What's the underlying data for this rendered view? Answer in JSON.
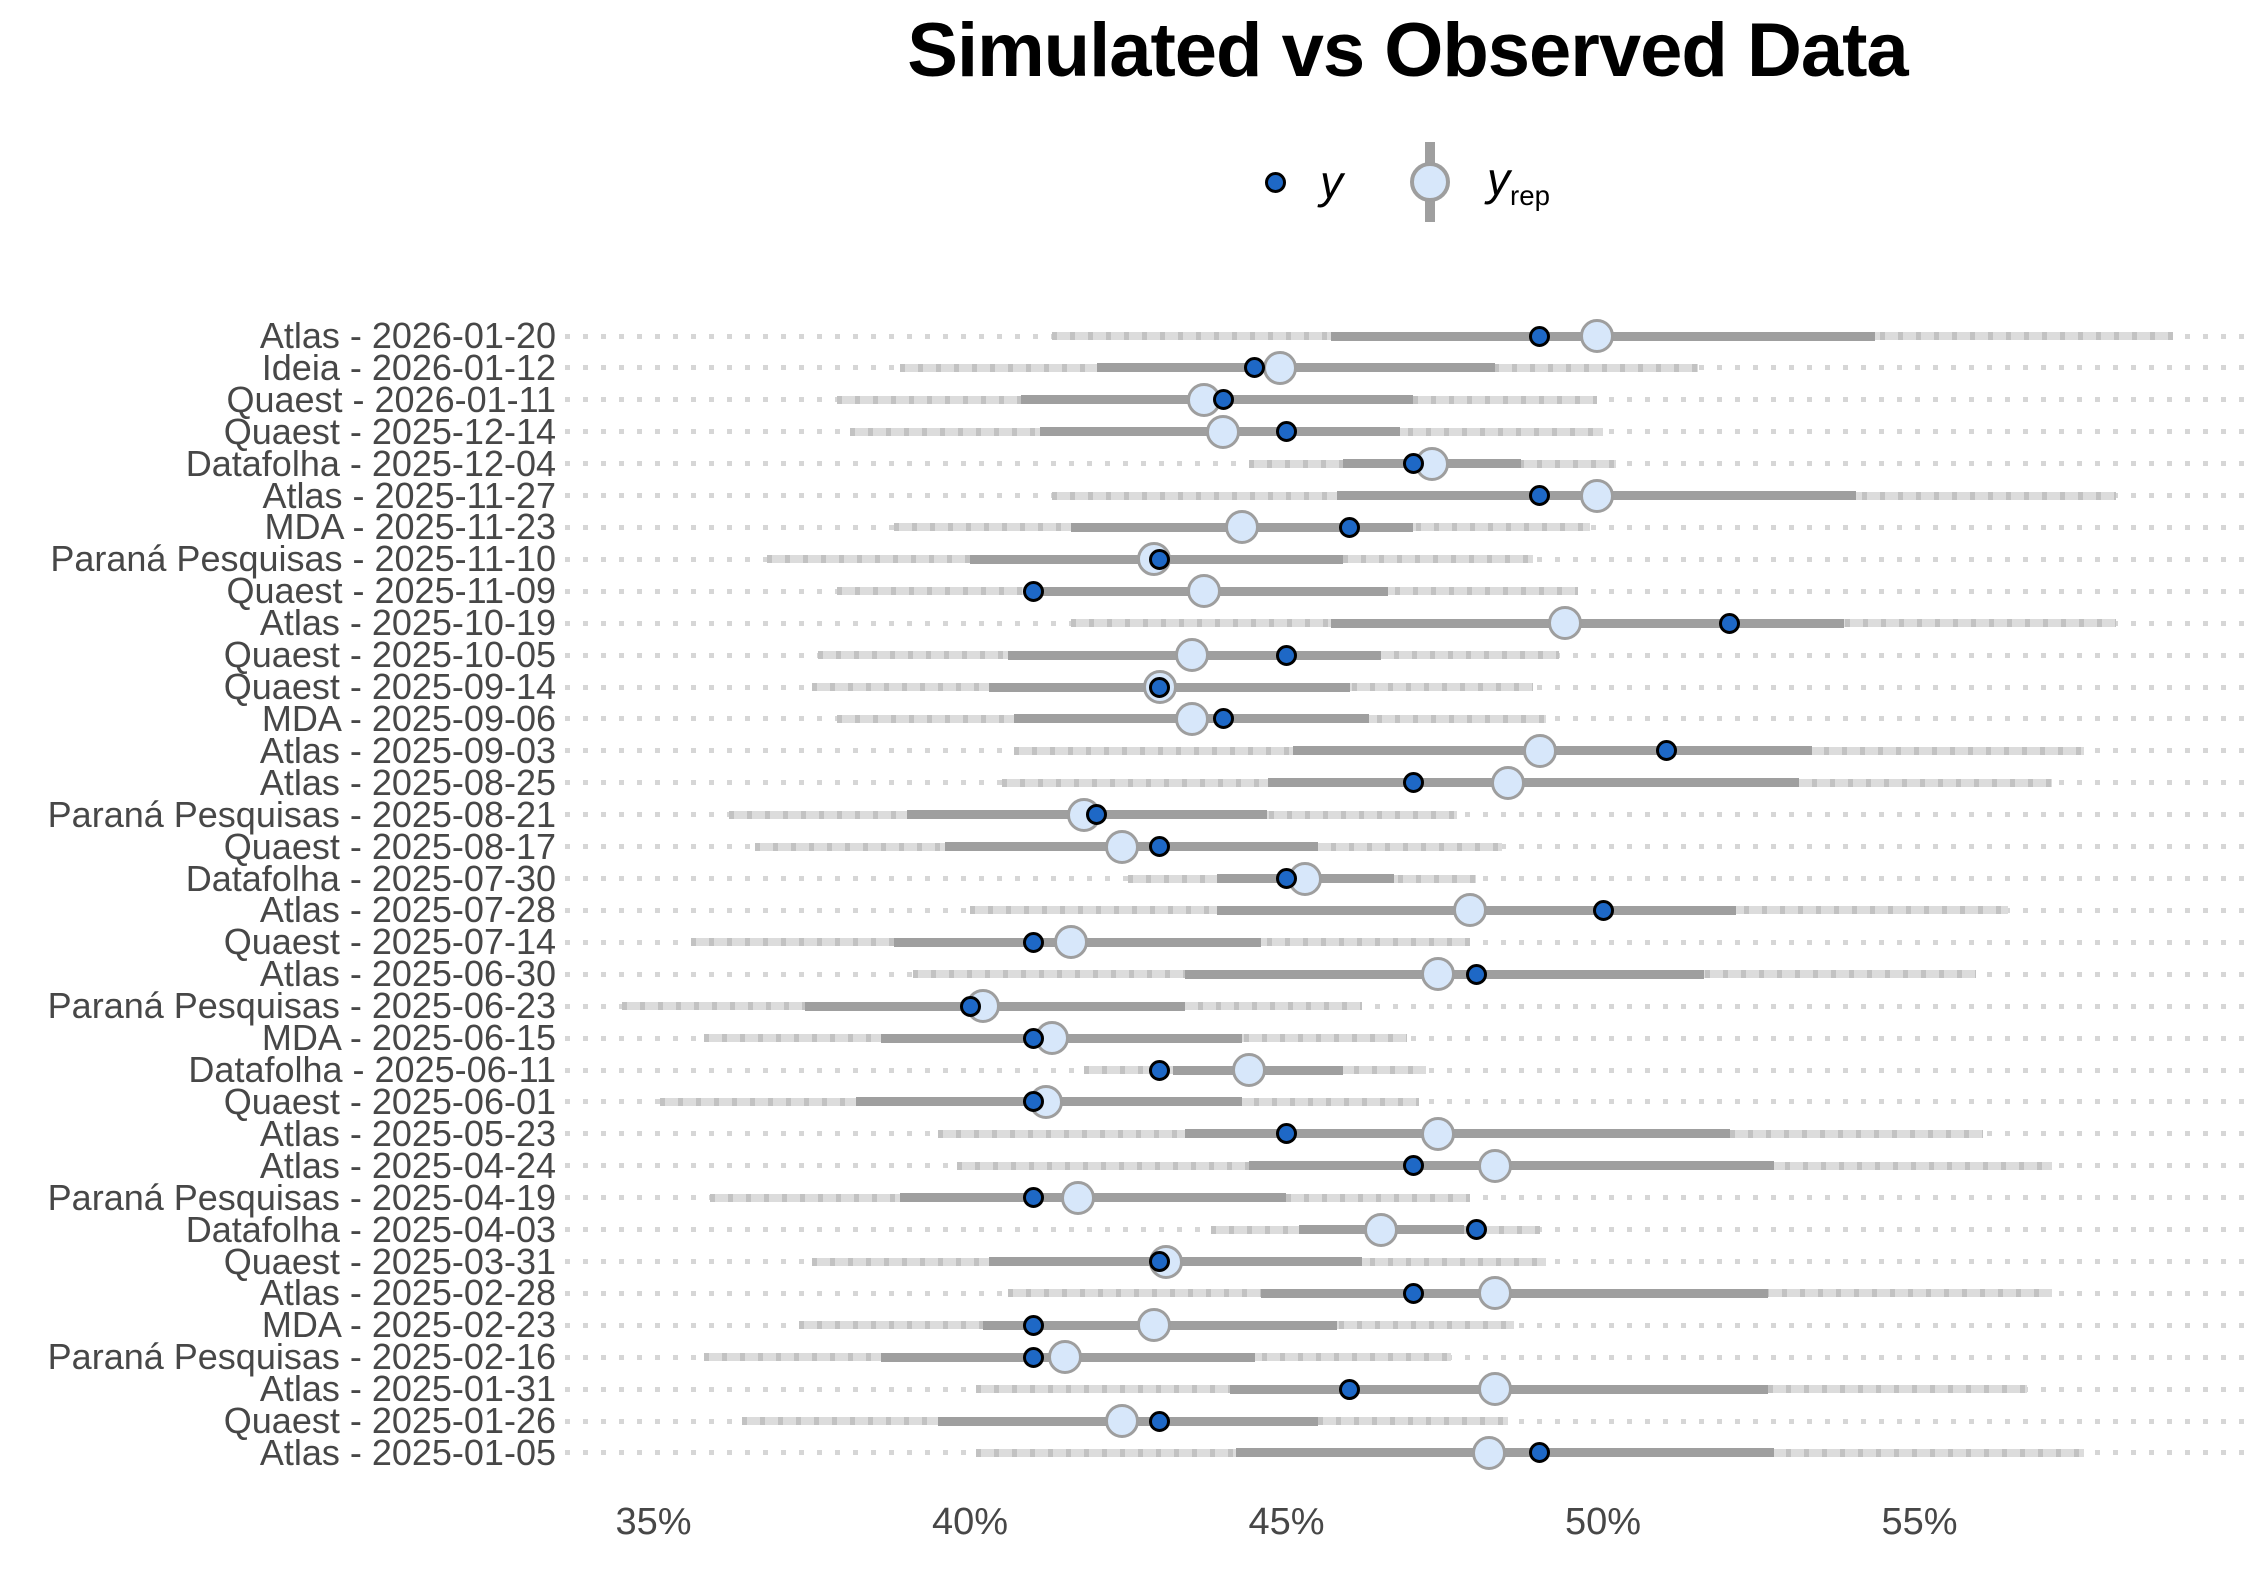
{
  "title": "Simulated vs Observed Data",
  "legend": {
    "y_label": "y",
    "yrep_label": "y",
    "yrep_label_sub": "rep"
  },
  "colors": {
    "y_point_fill": "#1e68c6",
    "y_point_stroke": "#000000",
    "yrep_fill": "#d7e7fa",
    "yrep_stroke": "#9e9e9e",
    "inner_interval": "#9f9f9f",
    "outer_interval": "#dcdcdc",
    "outer_interval_dash": "#c2c2c2",
    "grid_dot": "#d6d6d6",
    "axis_text": "#474747",
    "title_text": "#000000"
  },
  "x_axis": {
    "tick_labels": [
      "35%",
      "40%",
      "45%",
      "50%",
      "55%"
    ],
    "tick_values": [
      35,
      40,
      45,
      50,
      55
    ]
  },
  "chart_data": {
    "type": "scatter",
    "subtype": "ppc_intervals",
    "title": "Simulated vs Observed Data",
    "xlabel": "",
    "ylabel": "",
    "xlim": [
      33.8,
      60.3
    ],
    "x_tick_labels": [
      "35%",
      "40%",
      "45%",
      "50%",
      "55%"
    ],
    "x_tick_values": [
      35,
      40,
      45,
      50,
      55
    ],
    "legend_entries": [
      "y",
      "y_rep"
    ],
    "grid": "dotted-horizontal",
    "legend_position": "top-center",
    "rows": [
      {
        "label": "Atlas - 2026-01-20",
        "outer": [
          41.3,
          59.0
        ],
        "inner": [
          45.7,
          54.3
        ],
        "y_rep": 49.9,
        "y": 49
      },
      {
        "label": "Ideia - 2026-01-12",
        "outer": [
          38.9,
          51.5
        ],
        "inner": [
          42.0,
          48.3
        ],
        "y_rep": 44.9,
        "y": 44.5
      },
      {
        "label": "Quaest - 2026-01-11",
        "outer": [
          37.9,
          49.9
        ],
        "inner": [
          40.8,
          47.0
        ],
        "y_rep": 43.7,
        "y": 44
      },
      {
        "label": "Quaest - 2025-12-14",
        "outer": [
          38.1,
          50.0
        ],
        "inner": [
          41.1,
          46.8
        ],
        "y_rep": 44.0,
        "y": 45
      },
      {
        "label": "Datafolha - 2025-12-04",
        "outer": [
          44.4,
          50.2
        ],
        "inner": [
          45.9,
          48.7
        ],
        "y_rep": 47.3,
        "y": 47
      },
      {
        "label": "Atlas - 2025-11-27",
        "outer": [
          41.3,
          58.1
        ],
        "inner": [
          45.8,
          54.0
        ],
        "y_rep": 49.9,
        "y": 49
      },
      {
        "label": "MDA - 2025-11-23",
        "outer": [
          38.8,
          49.8
        ],
        "inner": [
          41.6,
          47.0
        ],
        "y_rep": 44.3,
        "y": 46
      },
      {
        "label": "Paraná Pesquisas - 2025-11-10",
        "outer": [
          36.8,
          48.9
        ],
        "inner": [
          40.0,
          45.9
        ],
        "y_rep": 42.9,
        "y": 43
      },
      {
        "label": "Quaest - 2025-11-09",
        "outer": [
          37.9,
          49.6
        ],
        "inner": [
          41.0,
          46.6
        ],
        "y_rep": 43.7,
        "y": 41
      },
      {
        "label": "Atlas - 2025-10-19",
        "outer": [
          41.6,
          58.1
        ],
        "inner": [
          45.7,
          53.8
        ],
        "y_rep": 49.4,
        "y": 52
      },
      {
        "label": "Quaest - 2025-10-05",
        "outer": [
          37.6,
          49.3
        ],
        "inner": [
          40.6,
          46.5
        ],
        "y_rep": 43.5,
        "y": 45
      },
      {
        "label": "Quaest - 2025-09-14",
        "outer": [
          37.5,
          48.9
        ],
        "inner": [
          40.3,
          46.0
        ],
        "y_rep": 43.0,
        "y": 43
      },
      {
        "label": "MDA - 2025-09-06",
        "outer": [
          37.9,
          49.1
        ],
        "inner": [
          40.7,
          46.3
        ],
        "y_rep": 43.5,
        "y": 44
      },
      {
        "label": "Atlas - 2025-09-03",
        "outer": [
          40.7,
          57.6
        ],
        "inner": [
          45.1,
          53.3
        ],
        "y_rep": 49.0,
        "y": 51
      },
      {
        "label": "Atlas - 2025-08-25",
        "outer": [
          40.5,
          57.1
        ],
        "inner": [
          44.7,
          53.1
        ],
        "y_rep": 48.5,
        "y": 47
      },
      {
        "label": "Paraná Pesquisas - 2025-08-21",
        "outer": [
          36.2,
          47.7
        ],
        "inner": [
          39.0,
          44.7
        ],
        "y_rep": 41.8,
        "y": 42
      },
      {
        "label": "Quaest - 2025-08-17",
        "outer": [
          36.6,
          48.4
        ],
        "inner": [
          39.6,
          45.5
        ],
        "y_rep": 42.4,
        "y": 43
      },
      {
        "label": "Datafolha - 2025-07-30",
        "outer": [
          42.5,
          48.0
        ],
        "inner": [
          43.9,
          46.7
        ],
        "y_rep": 45.3,
        "y": 45
      },
      {
        "label": "Atlas - 2025-07-28",
        "outer": [
          40.0,
          56.4
        ],
        "inner": [
          43.9,
          52.1
        ],
        "y_rep": 47.9,
        "y": 50
      },
      {
        "label": "Quaest - 2025-07-14",
        "outer": [
          35.6,
          47.9
        ],
        "inner": [
          38.8,
          44.6
        ],
        "y_rep": 41.6,
        "y": 41
      },
      {
        "label": "Atlas - 2025-06-30",
        "outer": [
          39.1,
          55.9
        ],
        "inner": [
          43.4,
          51.6
        ],
        "y_rep": 47.4,
        "y": 48
      },
      {
        "label": "Paraná Pesquisas - 2025-06-23",
        "outer": [
          34.5,
          46.2
        ],
        "inner": [
          37.4,
          43.4
        ],
        "y_rep": 40.2,
        "y": 40
      },
      {
        "label": "MDA - 2025-06-15",
        "outer": [
          35.8,
          46.9
        ],
        "inner": [
          38.6,
          44.3
        ],
        "y_rep": 41.3,
        "y": 41
      },
      {
        "label": "Datafolha - 2025-06-11",
        "outer": [
          41.8,
          47.2
        ],
        "inner": [
          43.2,
          45.9
        ],
        "y_rep": 44.4,
        "y": 43
      },
      {
        "label": "Quaest - 2025-06-01",
        "outer": [
          35.1,
          47.1
        ],
        "inner": [
          38.2,
          44.3
        ],
        "y_rep": 41.2,
        "y": 41
      },
      {
        "label": "Atlas - 2025-05-23",
        "outer": [
          39.5,
          56.0
        ],
        "inner": [
          43.4,
          52.0
        ],
        "y_rep": 47.4,
        "y": 45
      },
      {
        "label": "Atlas - 2025-04-24",
        "outer": [
          39.8,
          57.1
        ],
        "inner": [
          44.4,
          52.7
        ],
        "y_rep": 48.3,
        "y": 47
      },
      {
        "label": "Paraná Pesquisas - 2025-04-19",
        "outer": [
          35.9,
          47.9
        ],
        "inner": [
          38.9,
          45.0
        ],
        "y_rep": 41.7,
        "y": 41
      },
      {
        "label": "Datafolha - 2025-04-03",
        "outer": [
          43.8,
          49.0
        ],
        "inner": [
          45.2,
          47.8
        ],
        "y_rep": 46.5,
        "y": 48
      },
      {
        "label": "Quaest - 2025-03-31",
        "outer": [
          37.5,
          49.1
        ],
        "inner": [
          40.3,
          46.2
        ],
        "y_rep": 43.1,
        "y": 43
      },
      {
        "label": "Atlas - 2025-02-28",
        "outer": [
          40.6,
          57.1
        ],
        "inner": [
          44.6,
          52.6
        ],
        "y_rep": 48.3,
        "y": 47
      },
      {
        "label": "MDA - 2025-02-23",
        "outer": [
          37.3,
          48.6
        ],
        "inner": [
          40.2,
          45.8
        ],
        "y_rep": 42.9,
        "y": 41
      },
      {
        "label": "Paraná Pesquisas - 2025-02-16",
        "outer": [
          35.8,
          47.6
        ],
        "inner": [
          38.6,
          44.5
        ],
        "y_rep": 41.5,
        "y": 41
      },
      {
        "label": "Atlas - 2025-01-31",
        "outer": [
          40.1,
          56.7
        ],
        "inner": [
          44.1,
          52.6
        ],
        "y_rep": 48.3,
        "y": 46
      },
      {
        "label": "Quaest - 2025-01-26",
        "outer": [
          36.4,
          48.5
        ],
        "inner": [
          39.5,
          45.5
        ],
        "y_rep": 42.4,
        "y": 43
      },
      {
        "label": "Atlas - 2025-01-05",
        "outer": [
          40.1,
          57.6
        ],
        "inner": [
          44.2,
          52.7
        ],
        "y_rep": 48.2,
        "y": 49
      }
    ]
  }
}
